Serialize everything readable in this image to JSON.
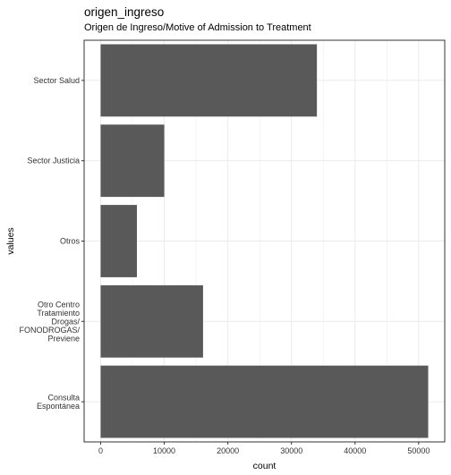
{
  "chart_data": {
    "type": "bar",
    "orientation": "horizontal",
    "title": "origen_ingreso",
    "subtitle": "Origen de Ingreso/Motive of Admission to Treatment",
    "xlabel": "count",
    "ylabel": "values",
    "categories": [
      "Sector Salud",
      "Sector Justicia",
      "Otros",
      "Otro Centro Tratamiento Drogas/ FONODROGAS/ Previene",
      "Consulta Espontánea"
    ],
    "category_label_lines": [
      [
        "Sector Salud"
      ],
      [
        "Sector Justicia"
      ],
      [
        "Otros"
      ],
      [
        "Otro Centro",
        "Tratamiento",
        "Drogas/",
        "FONODROGAS/",
        "Previene"
      ],
      [
        "Consulta",
        "Espontánea"
      ]
    ],
    "values": [
      34000,
      10000,
      5700,
      16100,
      51500
    ],
    "xlim": [
      -2600,
      54100
    ],
    "xticks": [
      0,
      10000,
      20000,
      30000,
      40000,
      50000
    ],
    "xtick_labels": [
      "0",
      "10000",
      "20000",
      "30000",
      "40000",
      "50000"
    ],
    "bar_color": "#595959",
    "grid": true,
    "grid_color": "#ebebeb",
    "panel_border_color": "#333333"
  }
}
